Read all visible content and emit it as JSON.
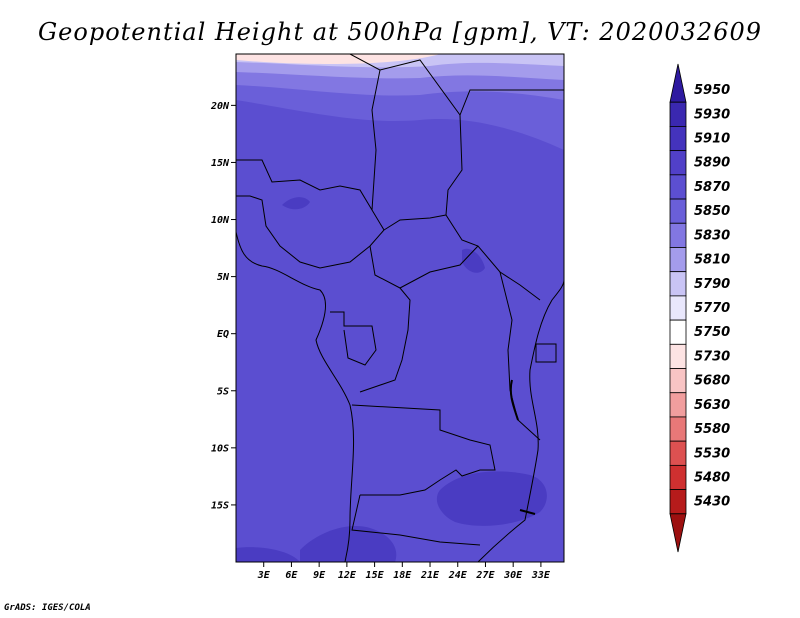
{
  "title": "Geopotential Height at 500hPa [gpm], VT: 2020032609",
  "footer": "GrADS: IGES/COLA",
  "map": {
    "lon_range": [
      0,
      35.5
    ],
    "lat_range": [
      -20,
      24.5
    ],
    "lat_ticks": [
      "20N",
      "15N",
      "10N",
      "5N",
      "EQ",
      "5S",
      "10S",
      "15S"
    ],
    "lat_tick_values": [
      20,
      15,
      10,
      5,
      0,
      -5,
      -10,
      -15
    ],
    "lon_ticks": [
      "3E",
      "6E",
      "9E",
      "12E",
      "15E",
      "18E",
      "21E",
      "24E",
      "27E",
      "30E",
      "33E"
    ],
    "lon_tick_values": [
      3,
      6,
      9,
      12,
      15,
      18,
      21,
      24,
      27,
      30,
      33
    ]
  },
  "legend": {
    "levels": [
      "5950",
      "5930",
      "5910",
      "5890",
      "5870",
      "5850",
      "5830",
      "5810",
      "5790",
      "5770",
      "5750",
      "5730",
      "5680",
      "5630",
      "5580",
      "5530",
      "5480",
      "5430"
    ],
    "colors": [
      "#2e1aa0",
      "#3a28b0",
      "#4433bd",
      "#5140c8",
      "#5c4fd1",
      "#6a5fd9",
      "#8277e2",
      "#a49cec",
      "#c9c4f5",
      "#e9e7fc",
      "#ffffff",
      "#fde3e3",
      "#f8c4c4",
      "#f19e9e",
      "#e87878",
      "#dd5151",
      "#cf3030",
      "#b61b1b",
      "#9d1010"
    ]
  }
}
